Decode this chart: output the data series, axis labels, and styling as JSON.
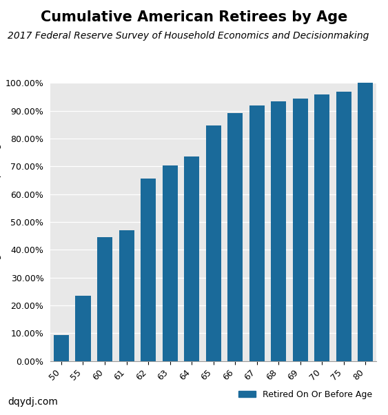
{
  "title": "Cumulative American Retirees by Age",
  "subtitle": "2017 Federal Reserve Survey of Household Economics and Decisionmaking",
  "xlabel": "",
  "categories": [
    "50",
    "55",
    "60",
    "61",
    "62",
    "63",
    "64",
    "65",
    "66",
    "67",
    "68",
    "69",
    "70",
    "75",
    "80"
  ],
  "values": [
    0.094,
    0.234,
    0.445,
    0.47,
    0.657,
    0.703,
    0.735,
    0.847,
    0.891,
    0.92,
    0.934,
    0.945,
    0.96,
    0.97,
    1.0
  ],
  "bar_color": "#1A6A9A",
  "background_color": "#E8E8E8",
  "fig_background": "#FFFFFF",
  "ylim": [
    0,
    1.0
  ],
  "ytick_values": [
    0.0,
    0.1,
    0.2,
    0.3,
    0.4,
    0.5,
    0.6,
    0.7,
    0.8,
    0.9,
    1.0
  ],
  "legend_label": "Retired On Or Before Age",
  "watermark": "dqydj.com",
  "title_fontsize": 15,
  "subtitle_fontsize": 10,
  "ylabel_fontsize": 10,
  "tick_fontsize": 9,
  "legend_fontsize": 9,
  "watermark_fontsize": 10
}
